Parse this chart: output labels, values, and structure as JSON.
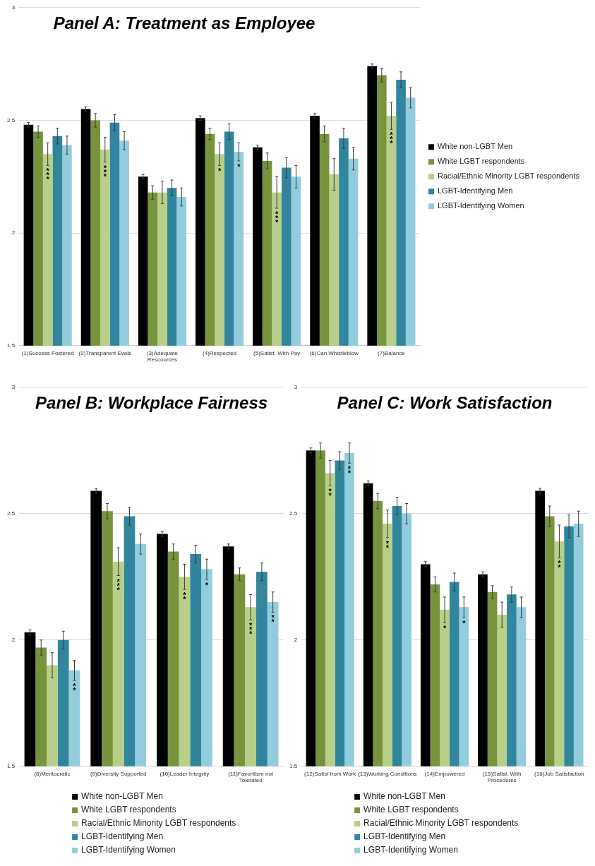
{
  "chart_data": [
    {
      "type": "bar",
      "title": "Panel A: Treatment as Employee",
      "categories": [
        "(1)Success Fostered",
        "(2)Transparent Evals",
        "(3)Adequate Rescources",
        "(4)Respected",
        "(5)Satisf. With Pay",
        "(6)Can Whistleblow",
        "(7)Balance"
      ],
      "series": [
        {
          "name": "White non-LGBT Men",
          "color": "#000000",
          "values": [
            2.48,
            2.55,
            2.25,
            2.51,
            2.38,
            2.52,
            2.74
          ],
          "errors": [
            0.01,
            0.01,
            0.01,
            0.01,
            0.01,
            0.01,
            0.01
          ]
        },
        {
          "name": "White LGBT respondents",
          "color": "#77933c",
          "values": [
            2.45,
            2.5,
            2.18,
            2.44,
            2.32,
            2.44,
            2.7
          ],
          "errors": [
            0.025,
            0.03,
            0.03,
            0.025,
            0.035,
            0.035,
            0.03
          ]
        },
        {
          "name": "Racial/Ethnic Minority LGBT respondents",
          "color": "#b7cf88",
          "values": [
            2.35,
            2.37,
            2.18,
            2.35,
            2.18,
            2.26,
            2.52
          ],
          "errors": [
            0.05,
            0.055,
            0.05,
            0.05,
            0.07,
            0.07,
            0.06
          ],
          "value_labels": [
            "***",
            "***",
            null,
            "*",
            "***",
            null,
            "***"
          ]
        },
        {
          "name": "LGBT-Identifying Men",
          "color": "#31859c",
          "values": [
            2.43,
            2.49,
            2.2,
            2.45,
            2.29,
            2.42,
            2.68
          ],
          "errors": [
            0.035,
            0.035,
            0.035,
            0.035,
            0.045,
            0.045,
            0.035
          ]
        },
        {
          "name": "LGBT-Identifying Women",
          "color": "#93cddd",
          "values": [
            2.39,
            2.41,
            2.16,
            2.36,
            2.25,
            2.33,
            2.6
          ],
          "errors": [
            0.04,
            0.04,
            0.04,
            0.04,
            0.05,
            0.05,
            0.045
          ],
          "value_labels": [
            null,
            null,
            null,
            "*",
            null,
            null,
            null
          ]
        }
      ],
      "ylim": [
        1.5,
        3
      ],
      "yticks": [
        1.5,
        2,
        2.5,
        3
      ],
      "grid": "y",
      "legend": "right"
    },
    {
      "type": "bar",
      "title": "Panel B: Workplace Fairness",
      "categories": [
        "(8)Meritocratic",
        "(9)Diversity Supported",
        "(10)Leader Integrity",
        "(11)Favoritism not Tolerated"
      ],
      "series": [
        {
          "name": "White non-LGBT Men",
          "color": "#000000",
          "values": [
            2.03,
            2.59,
            2.42,
            2.37
          ],
          "errors": [
            0.01,
            0.01,
            0.01,
            0.01
          ]
        },
        {
          "name": "White LGBT respondents",
          "color": "#77933c",
          "values": [
            1.97,
            2.51,
            2.35,
            2.26
          ],
          "errors": [
            0.03,
            0.03,
            0.03,
            0.025
          ]
        },
        {
          "name": "Racial/Ethnic Minority LGBT respondents",
          "color": "#b7cf88",
          "values": [
            1.9,
            2.31,
            2.25,
            2.13
          ],
          "errors": [
            0.05,
            0.055,
            0.05,
            0.05
          ],
          "value_labels": [
            null,
            "***",
            "**",
            "***"
          ]
        },
        {
          "name": "LGBT-Identifying Men",
          "color": "#31859c",
          "values": [
            2.0,
            2.49,
            2.34,
            2.27
          ],
          "errors": [
            0.035,
            0.035,
            0.035,
            0.035
          ]
        },
        {
          "name": "LGBT-Identifying Women",
          "color": "#93cddd",
          "values": [
            1.88,
            2.38,
            2.28,
            2.15
          ],
          "errors": [
            0.04,
            0.04,
            0.04,
            0.04
          ],
          "value_labels": [
            "**",
            null,
            "*",
            "**"
          ]
        }
      ],
      "ylim": [
        1.5,
        3
      ],
      "yticks": [
        1.5,
        2,
        2.5,
        3
      ],
      "grid": "y",
      "legend": "bottom"
    },
    {
      "type": "bar",
      "title": "Panel C: Work Satisfaction",
      "categories": [
        "(12)Satisf from Work",
        "(13)Working Conditions",
        "(14)Empowered",
        "(15)Satisf. With Procedures",
        "(16)Job Satisfaction"
      ],
      "series": [
        {
          "name": "White non-LGBT Men",
          "color": "#000000",
          "values": [
            2.75,
            2.62,
            2.3,
            2.26,
            2.59
          ],
          "errors": [
            0.01,
            0.01,
            0.01,
            0.01,
            0.01
          ]
        },
        {
          "name": "White LGBT respondents",
          "color": "#77933c",
          "values": [
            2.75,
            2.55,
            2.22,
            2.19,
            2.49
          ],
          "errors": [
            0.03,
            0.03,
            0.03,
            0.025,
            0.04
          ]
        },
        {
          "name": "Racial/Ethnic Minority LGBT respondents",
          "color": "#b7cf88",
          "values": [
            2.66,
            2.46,
            2.12,
            2.1,
            2.39
          ],
          "errors": [
            0.05,
            0.055,
            0.05,
            0.05,
            0.065
          ],
          "value_labels": [
            "**",
            "**",
            "*",
            null,
            "**"
          ]
        },
        {
          "name": "LGBT-Identifying Men",
          "color": "#31859c",
          "values": [
            2.71,
            2.53,
            2.23,
            2.18,
            2.45
          ],
          "errors": [
            0.035,
            0.035,
            0.035,
            0.03,
            0.045
          ]
        },
        {
          "name": "LGBT-Identifying Women",
          "color": "#93cddd",
          "values": [
            2.74,
            2.5,
            2.13,
            2.13,
            2.46
          ],
          "errors": [
            0.04,
            0.04,
            0.04,
            0.04,
            0.05
          ],
          "value_labels": [
            "**",
            null,
            "*",
            null,
            null
          ]
        }
      ],
      "ylim": [
        1.5,
        3
      ],
      "yticks": [
        1.5,
        2,
        2.5,
        3
      ],
      "grid": "y",
      "legend": "bottom"
    }
  ]
}
